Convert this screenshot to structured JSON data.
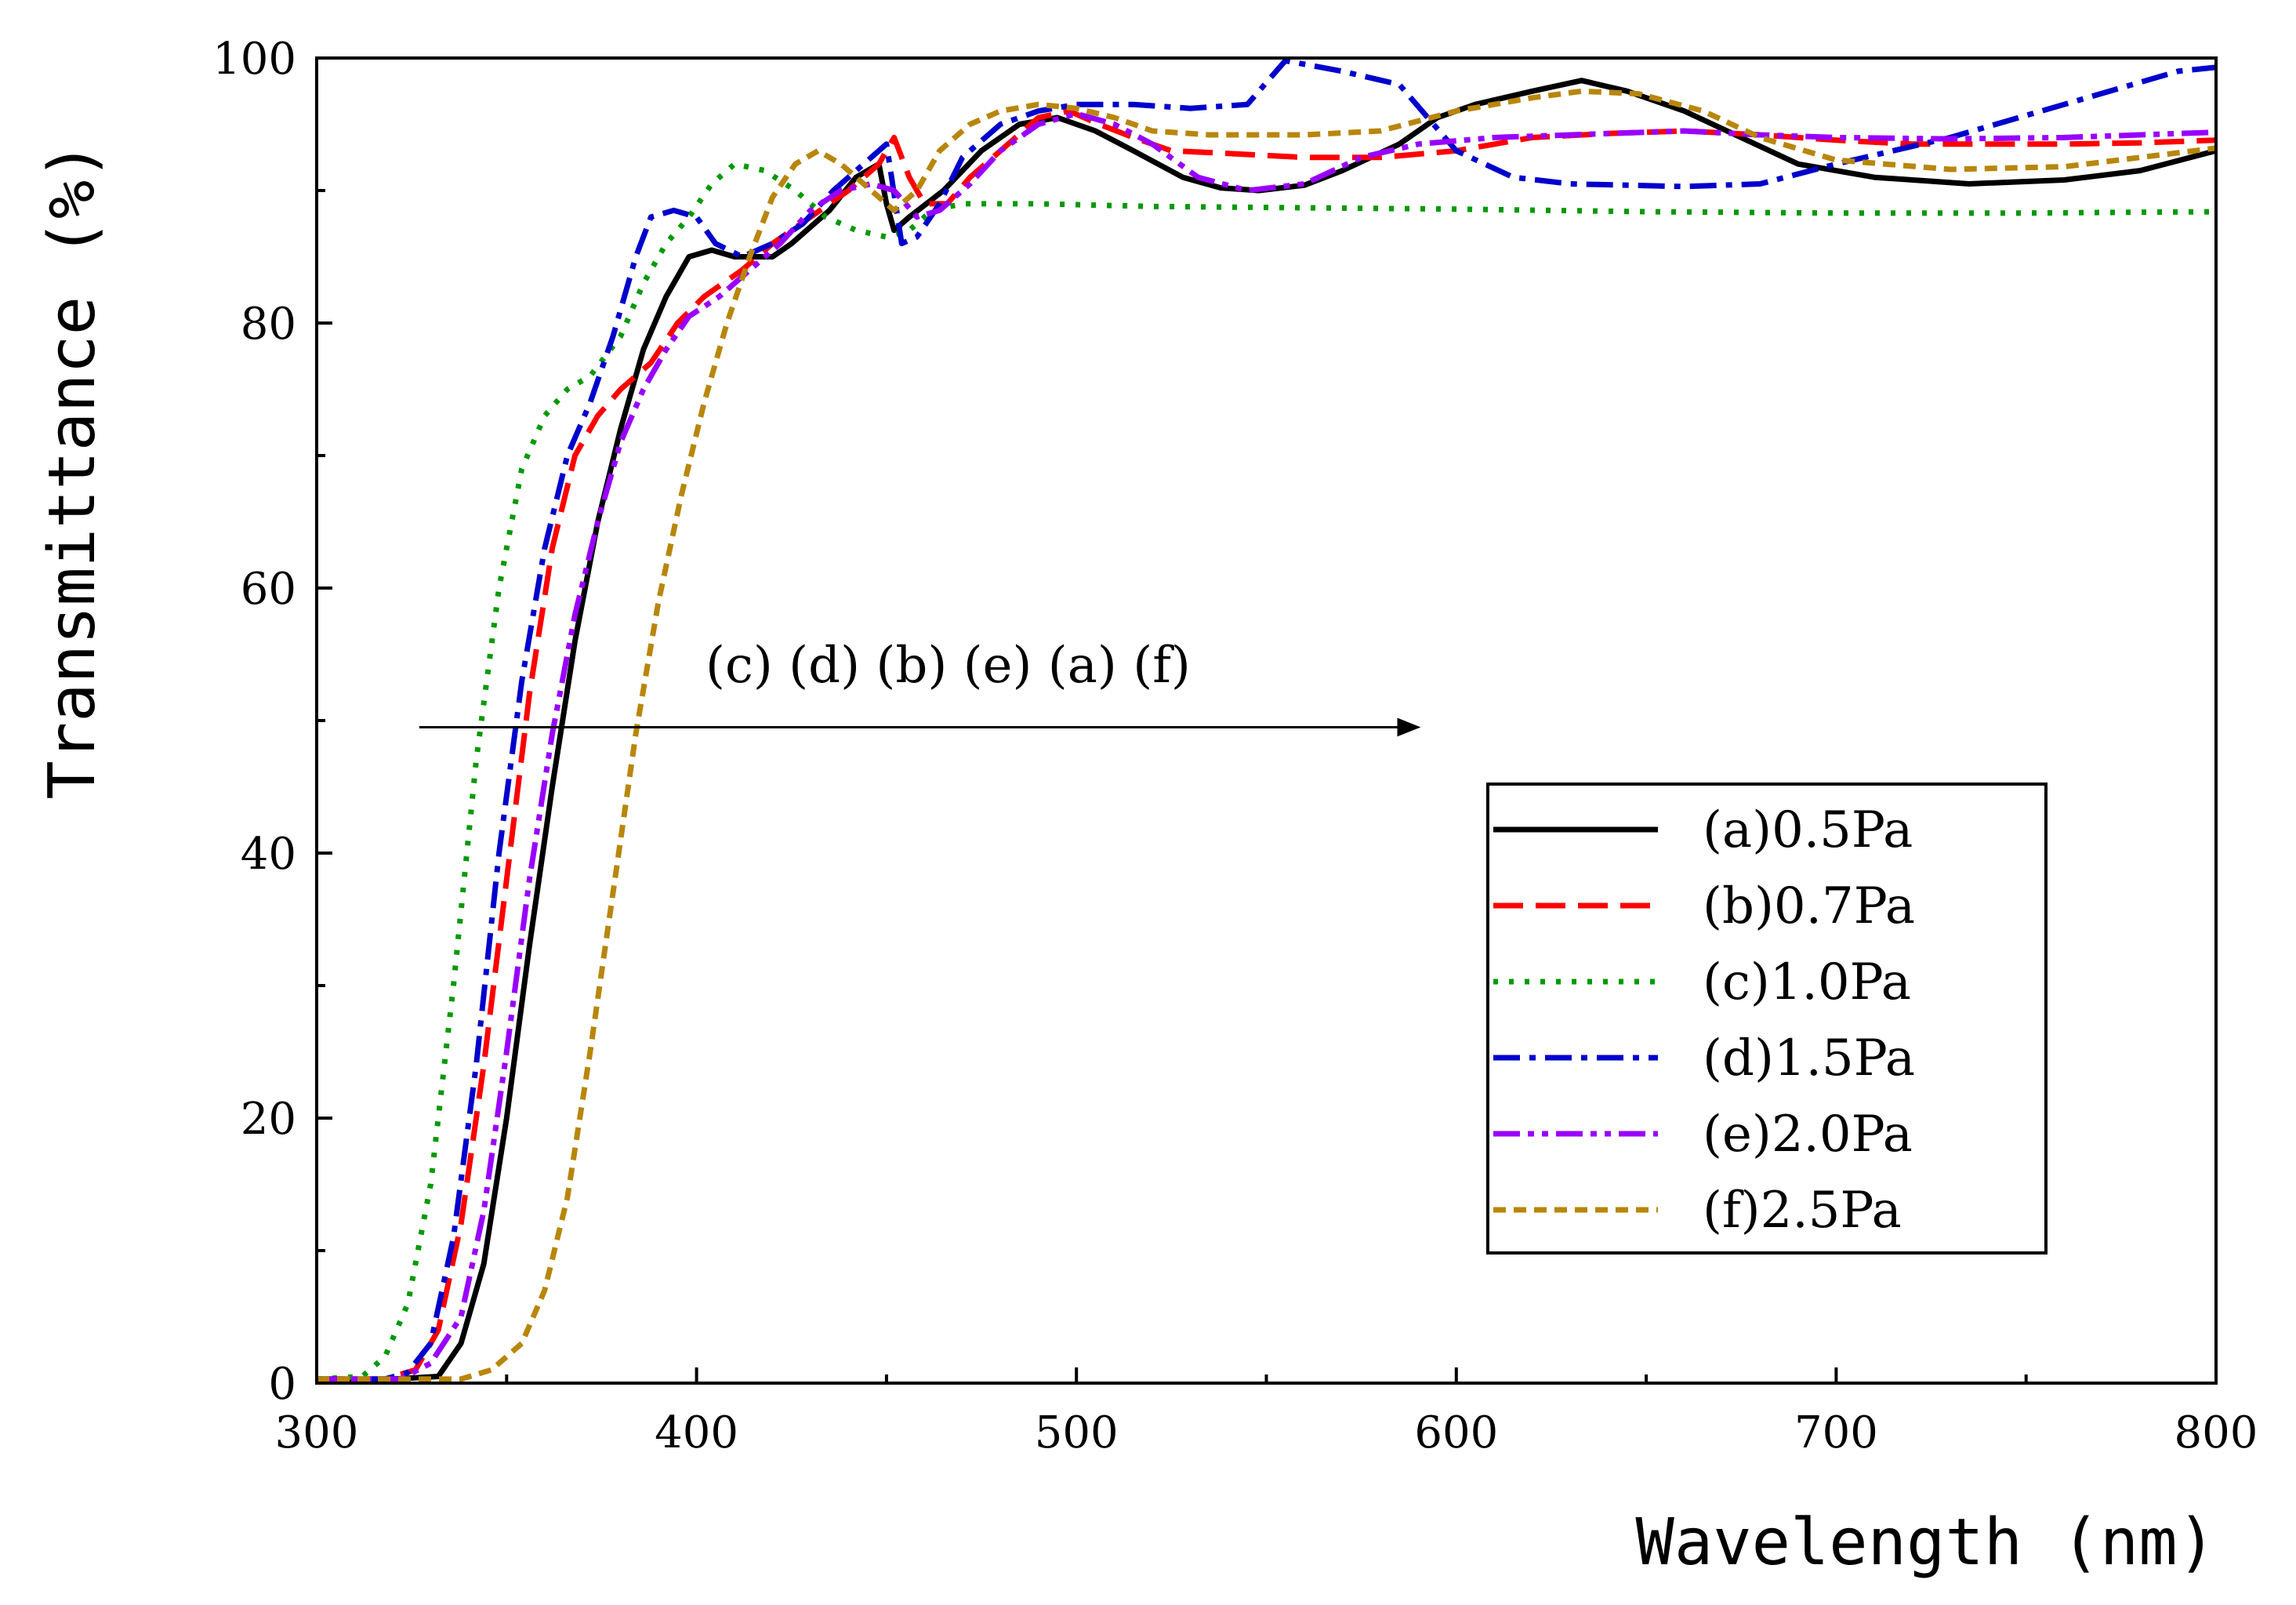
{
  "chart_data": {
    "type": "line",
    "title": "",
    "xlabel": "Wavelength (nm)",
    "ylabel": "Transmittance (%)",
    "xlim": [
      300,
      800
    ],
    "ylim": [
      0,
      100
    ],
    "x_ticks": [
      300,
      400,
      500,
      600,
      700,
      800
    ],
    "y_ticks": [
      0,
      20,
      40,
      60,
      80,
      100
    ],
    "legend_position": "center-right",
    "annotation": {
      "text": "(c) (d) (b) (e) (a) (f)",
      "arrow_from": {
        "x": 327,
        "y": 49.5
      },
      "arrow_to": {
        "x": 590,
        "y": 49.5
      }
    },
    "series": [
      {
        "name": "(a)0.5Pa",
        "color": "#000000",
        "dash": "solid",
        "points": [
          [
            300,
            0.3
          ],
          [
            320,
            0.3
          ],
          [
            332,
            0.5
          ],
          [
            338,
            3
          ],
          [
            344,
            9
          ],
          [
            350,
            20
          ],
          [
            356,
            33
          ],
          [
            362,
            45
          ],
          [
            368,
            56
          ],
          [
            374,
            65
          ],
          [
            380,
            72
          ],
          [
            386,
            78
          ],
          [
            392,
            82
          ],
          [
            398,
            85
          ],
          [
            404,
            85.5
          ],
          [
            410,
            85
          ],
          [
            420,
            85
          ],
          [
            425,
            86
          ],
          [
            435,
            88.5
          ],
          [
            442,
            91
          ],
          [
            448,
            92
          ],
          [
            450,
            89
          ],
          [
            452,
            87
          ],
          [
            456,
            88
          ],
          [
            465,
            90
          ],
          [
            475,
            93
          ],
          [
            485,
            95
          ],
          [
            495,
            95.5
          ],
          [
            505,
            94.5
          ],
          [
            515,
            93
          ],
          [
            528,
            91
          ],
          [
            538,
            90.2
          ],
          [
            548,
            90
          ],
          [
            560,
            90.4
          ],
          [
            570,
            91.5
          ],
          [
            585,
            93.5
          ],
          [
            595,
            95.5
          ],
          [
            605,
            96.5
          ],
          [
            620,
            97.5
          ],
          [
            633,
            98.3
          ],
          [
            645,
            97.5
          ],
          [
            660,
            96
          ],
          [
            675,
            94
          ],
          [
            690,
            92
          ],
          [
            710,
            91
          ],
          [
            735,
            90.5
          ],
          [
            760,
            90.8
          ],
          [
            780,
            91.5
          ],
          [
            800,
            93
          ]
        ]
      },
      {
        "name": "(b)0.7Pa",
        "color": "#ff0000",
        "dash": "dashed",
        "points": [
          [
            300,
            0.3
          ],
          [
            318,
            0.3
          ],
          [
            326,
            1
          ],
          [
            332,
            4
          ],
          [
            338,
            12
          ],
          [
            344,
            24
          ],
          [
            350,
            38
          ],
          [
            356,
            52
          ],
          [
            362,
            63
          ],
          [
            368,
            70
          ],
          [
            374,
            73
          ],
          [
            380,
            75
          ],
          [
            388,
            77
          ],
          [
            395,
            80
          ],
          [
            402,
            82
          ],
          [
            412,
            84
          ],
          [
            420,
            86
          ],
          [
            430,
            88
          ],
          [
            440,
            90
          ],
          [
            448,
            92
          ],
          [
            452,
            94
          ],
          [
            456,
            91
          ],
          [
            460,
            89
          ],
          [
            466,
            89
          ],
          [
            472,
            91
          ],
          [
            480,
            93
          ],
          [
            490,
            95.5
          ],
          [
            498,
            96
          ],
          [
            506,
            95
          ],
          [
            515,
            94
          ],
          [
            525,
            93
          ],
          [
            540,
            92.8
          ],
          [
            560,
            92.5
          ],
          [
            580,
            92.5
          ],
          [
            600,
            93
          ],
          [
            620,
            94
          ],
          [
            640,
            94.3
          ],
          [
            660,
            94.5
          ],
          [
            680,
            94.2
          ],
          [
            700,
            93.8
          ],
          [
            720,
            93.5
          ],
          [
            740,
            93.5
          ],
          [
            760,
            93.5
          ],
          [
            780,
            93.6
          ],
          [
            800,
            93.8
          ]
        ]
      },
      {
        "name": "(c)1.0Pa",
        "color": "#009900",
        "dash": "dotted",
        "points": [
          [
            300,
            0.3
          ],
          [
            312,
            0.5
          ],
          [
            318,
            2
          ],
          [
            324,
            6
          ],
          [
            330,
            15
          ],
          [
            336,
            30
          ],
          [
            342,
            47
          ],
          [
            348,
            60
          ],
          [
            354,
            69
          ],
          [
            360,
            73
          ],
          [
            366,
            75
          ],
          [
            372,
            76
          ],
          [
            380,
            79
          ],
          [
            386,
            83
          ],
          [
            392,
            86
          ],
          [
            398,
            88
          ],
          [
            404,
            90.5
          ],
          [
            410,
            92
          ],
          [
            418,
            91.5
          ],
          [
            426,
            90
          ],
          [
            434,
            88
          ],
          [
            442,
            87
          ],
          [
            450,
            86.5
          ],
          [
            456,
            87
          ],
          [
            462,
            88.5
          ],
          [
            470,
            89
          ],
          [
            490,
            89
          ],
          [
            520,
            88.8
          ],
          [
            560,
            88.7
          ],
          [
            600,
            88.6
          ],
          [
            650,
            88.4
          ],
          [
            700,
            88.3
          ],
          [
            750,
            88.3
          ],
          [
            800,
            88.4
          ]
        ]
      },
      {
        "name": "(d)1.5Pa",
        "color": "#0000cc",
        "dash": "dashdot",
        "points": [
          [
            300,
            0.3
          ],
          [
            318,
            0.3
          ],
          [
            324,
            0.8
          ],
          [
            330,
            3
          ],
          [
            336,
            11
          ],
          [
            342,
            24
          ],
          [
            348,
            40
          ],
          [
            354,
            53
          ],
          [
            360,
            63
          ],
          [
            366,
            70
          ],
          [
            372,
            74
          ],
          [
            378,
            79
          ],
          [
            384,
            85
          ],
          [
            388,
            88
          ],
          [
            394,
            88.5
          ],
          [
            400,
            88
          ],
          [
            405,
            86
          ],
          [
            412,
            85
          ],
          [
            420,
            86
          ],
          [
            428,
            87.5
          ],
          [
            436,
            90
          ],
          [
            444,
            92
          ],
          [
            450,
            93.5
          ],
          [
            454,
            86
          ],
          [
            458,
            86.5
          ],
          [
            464,
            89
          ],
          [
            470,
            92.5
          ],
          [
            480,
            95
          ],
          [
            490,
            96
          ],
          [
            500,
            96.5
          ],
          [
            515,
            96.5
          ],
          [
            530,
            96.2
          ],
          [
            545,
            96.5
          ],
          [
            555,
            99.8
          ],
          [
            570,
            99
          ],
          [
            585,
            98
          ],
          [
            600,
            93
          ],
          [
            615,
            91
          ],
          [
            630,
            90.5
          ],
          [
            660,
            90.3
          ],
          [
            680,
            90.5
          ],
          [
            700,
            92
          ],
          [
            730,
            94
          ],
          [
            760,
            96.5
          ],
          [
            790,
            99
          ],
          [
            800,
            99.3
          ]
        ]
      },
      {
        "name": "(e)2.0Pa",
        "color": "#9900ff",
        "dash": "dashdotdot",
        "points": [
          [
            300,
            0.3
          ],
          [
            322,
            0.3
          ],
          [
            330,
            1.5
          ],
          [
            338,
            5
          ],
          [
            344,
            13
          ],
          [
            350,
            25
          ],
          [
            356,
            38
          ],
          [
            362,
            49
          ],
          [
            368,
            58
          ],
          [
            374,
            65
          ],
          [
            380,
            71
          ],
          [
            386,
            75
          ],
          [
            392,
            78
          ],
          [
            398,
            80.5
          ],
          [
            406,
            82
          ],
          [
            414,
            84
          ],
          [
            422,
            86
          ],
          [
            430,
            88.5
          ],
          [
            438,
            90
          ],
          [
            446,
            90.5
          ],
          [
            452,
            90
          ],
          [
            458,
            88
          ],
          [
            464,
            88.5
          ],
          [
            472,
            90.5
          ],
          [
            480,
            93
          ],
          [
            490,
            95
          ],
          [
            500,
            95.8
          ],
          [
            510,
            95
          ],
          [
            520,
            93.5
          ],
          [
            532,
            91
          ],
          [
            545,
            90
          ],
          [
            560,
            90.5
          ],
          [
            575,
            92.5
          ],
          [
            590,
            93.5
          ],
          [
            610,
            94
          ],
          [
            640,
            94.3
          ],
          [
            660,
            94.5
          ],
          [
            680,
            94.2
          ],
          [
            700,
            94
          ],
          [
            730,
            93.9
          ],
          [
            760,
            94
          ],
          [
            780,
            94.2
          ],
          [
            800,
            94.4
          ]
        ]
      },
      {
        "name": "(f)2.5Pa",
        "color": "#b8860b",
        "dash": "shortdash",
        "points": [
          [
            300,
            0.3
          ],
          [
            338,
            0.3
          ],
          [
            346,
            1
          ],
          [
            354,
            3
          ],
          [
            360,
            7
          ],
          [
            366,
            14
          ],
          [
            372,
            25
          ],
          [
            378,
            37
          ],
          [
            384,
            49
          ],
          [
            390,
            59
          ],
          [
            396,
            67
          ],
          [
            402,
            74
          ],
          [
            408,
            80
          ],
          [
            414,
            85
          ],
          [
            420,
            89.5
          ],
          [
            426,
            92
          ],
          [
            432,
            93
          ],
          [
            438,
            92
          ],
          [
            444,
            90.5
          ],
          [
            448,
            89.5
          ],
          [
            452,
            88.5
          ],
          [
            458,
            90
          ],
          [
            464,
            93
          ],
          [
            472,
            95
          ],
          [
            480,
            96
          ],
          [
            490,
            96.5
          ],
          [
            500,
            96.2
          ],
          [
            510,
            95.5
          ],
          [
            520,
            94.5
          ],
          [
            535,
            94.2
          ],
          [
            560,
            94.2
          ],
          [
            580,
            94.5
          ],
          [
            600,
            96
          ],
          [
            620,
            97
          ],
          [
            633,
            97.5
          ],
          [
            648,
            97.3
          ],
          [
            665,
            96
          ],
          [
            680,
            94
          ],
          [
            700,
            92.3
          ],
          [
            730,
            91.6
          ],
          [
            760,
            91.8
          ],
          [
            780,
            92.5
          ],
          [
            800,
            93.2
          ]
        ]
      }
    ]
  }
}
